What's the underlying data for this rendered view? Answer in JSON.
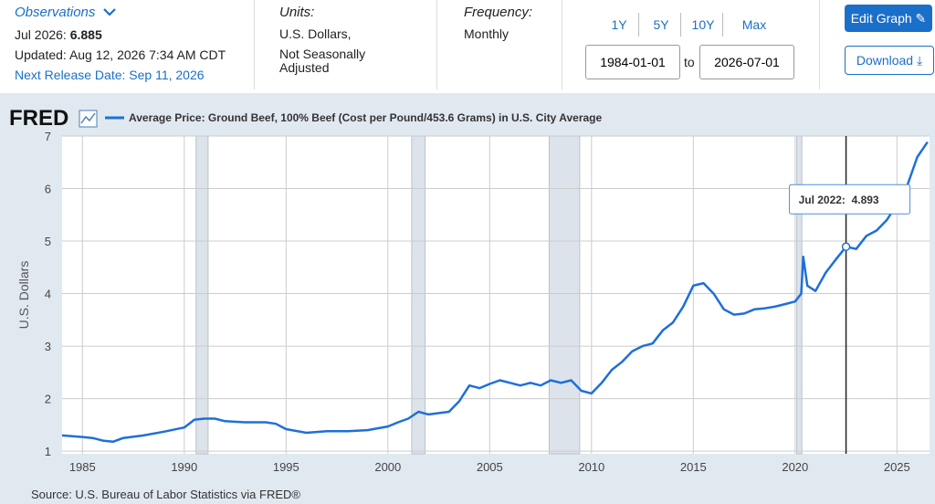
{
  "header": {
    "observations": "Observations",
    "latest_label": "Jul 2026:",
    "latest_value": 6.885,
    "updated": "Updated: Aug 12, 2026 7:34 AM CDT",
    "next_release": "Next Release Date: Sep 11, 2026",
    "units_label": "Units:",
    "units_1": "U.S. Dollars,",
    "units_2": "Not Seasonally Adjusted",
    "frequency_label": "Frequency:",
    "frequency": "Monthly",
    "ranges": [
      "1Y",
      "5Y",
      "10Y",
      "Max"
    ],
    "start_date": "1984-01-01",
    "to": "to",
    "end_date": "2026-07-01",
    "edit": "Edit Graph",
    "download": "Download"
  },
  "chart_data": {
    "type": "line",
    "logo": "FRED",
    "y_label": "U.S. Dollars",
    "source": "Source: U.S. Bureau of Labor Statistics via FRED®",
    "x": [
      1984,
      1985,
      1985.5,
      1986,
      1986.5,
      1987,
      1988,
      1989,
      1990,
      1990.5,
      1991,
      1991.5,
      1992,
      1993,
      1994,
      1994.5,
      1995,
      1996,
      1997,
      1998,
      1999,
      2000,
      2000.5,
      2001,
      2001.5,
      2002,
      2003,
      2003.5,
      2004,
      2004.5,
      2005,
      2005.5,
      2006,
      2006.5,
      2007,
      2007.5,
      2008,
      2008.5,
      2009,
      2009.5,
      2010,
      2010.5,
      2011,
      2011.5,
      2012,
      2012.5,
      2013,
      2013.5,
      2014,
      2014.5,
      2015,
      2015.5,
      2016,
      2016.5,
      2017,
      2017.5,
      2018,
      2018.5,
      2019,
      2019.5,
      2020,
      2020.3,
      2020.4,
      2020.6,
      2021,
      2021.5,
      2022,
      2022.5,
      2023,
      2023.5,
      2024,
      2024.5,
      2025,
      2025.5,
      2026,
      2026.5
    ],
    "series": [
      {
        "name": "Average Price: Ground Beef, 100% Beef (Cost per Pound/453.6 Grams) in U.S. City Average",
        "color": "#1e6fd9",
        "values": [
          1.3,
          1.27,
          1.25,
          1.2,
          1.18,
          1.25,
          1.3,
          1.37,
          1.45,
          1.6,
          1.62,
          1.62,
          1.57,
          1.55,
          1.55,
          1.52,
          1.42,
          1.35,
          1.38,
          1.38,
          1.4,
          1.47,
          1.55,
          1.62,
          1.75,
          1.7,
          1.75,
          1.95,
          2.25,
          2.2,
          2.28,
          2.35,
          2.3,
          2.25,
          2.3,
          2.25,
          2.35,
          2.3,
          2.35,
          2.15,
          2.1,
          2.3,
          2.55,
          2.7,
          2.9,
          3.0,
          3.05,
          3.3,
          3.45,
          3.75,
          4.15,
          4.2,
          4.0,
          3.7,
          3.6,
          3.62,
          3.7,
          3.72,
          3.75,
          3.8,
          3.85,
          4.0,
          4.7,
          4.15,
          4.05,
          4.4,
          4.65,
          4.893,
          4.85,
          5.1,
          5.2,
          5.4,
          5.7,
          6.05,
          6.6,
          6.885
        ]
      }
    ],
    "xlim": [
      1984,
      2026.6
    ],
    "xticks": [
      1985,
      1990,
      1995,
      2000,
      2005,
      2010,
      2015,
      2020,
      2025
    ],
    "ylim": [
      0.95,
      7
    ],
    "yticks": [
      1,
      2,
      3,
      4,
      5,
      6,
      7
    ],
    "grid": true,
    "recessions": [
      [
        1990.58,
        1991.17
      ],
      [
        2001.17,
        2001.83
      ],
      [
        2007.92,
        2009.42
      ],
      [
        2020.08,
        2020.33
      ]
    ],
    "tooltip": {
      "x": 2022.5,
      "label": "Jul 2022:",
      "value": 4.893
    }
  }
}
